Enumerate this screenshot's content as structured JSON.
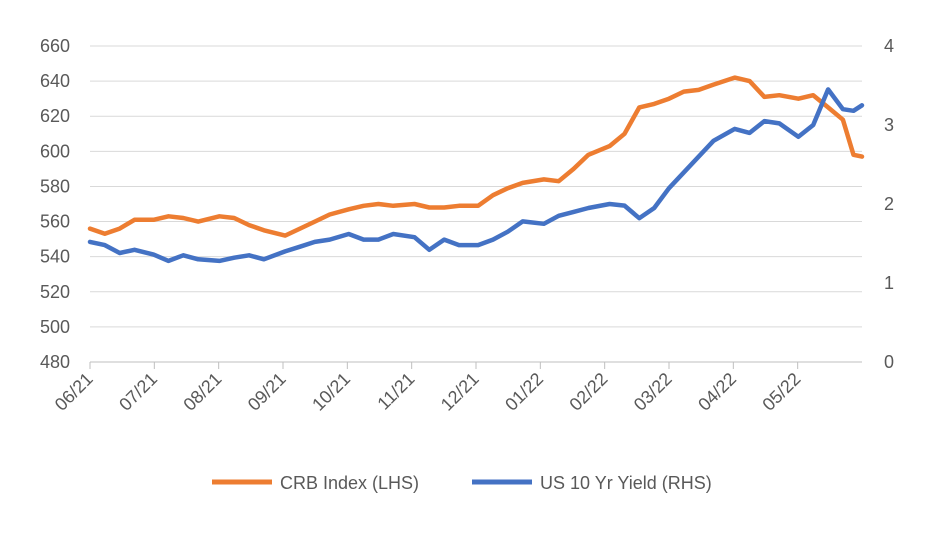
{
  "chart_data": {
    "type": "line",
    "title": "",
    "xlabel": "",
    "ylabel": "",
    "x_ticks": [
      "06/21",
      "07/21",
      "08/21",
      "09/21",
      "10/21",
      "11/21",
      "12/21",
      "01/22",
      "02/22",
      "03/22",
      "04/22",
      "05/22"
    ],
    "left_axis": {
      "ylim": [
        480,
        660
      ],
      "ticks": [
        "480",
        "500",
        "520",
        "540",
        "560",
        "580",
        "600",
        "620",
        "640",
        "660"
      ]
    },
    "right_axis": {
      "ylim": [
        0,
        4
      ],
      "ticks": [
        "0",
        "1",
        "2",
        "3",
        "4"
      ]
    },
    "grid": true,
    "legend_position": "bottom",
    "series": [
      {
        "name": "CRB Index (LHS)",
        "axis": "left",
        "color": "#ED7D31",
        "points": [
          [
            "2021-06-01",
            556
          ],
          [
            "2021-06-08",
            553
          ],
          [
            "2021-06-15",
            556
          ],
          [
            "2021-06-22",
            561
          ],
          [
            "2021-07-01",
            561
          ],
          [
            "2021-07-08",
            563
          ],
          [
            "2021-07-15",
            562
          ],
          [
            "2021-07-22",
            560
          ],
          [
            "2021-08-01",
            563
          ],
          [
            "2021-08-08",
            562
          ],
          [
            "2021-08-15",
            558
          ],
          [
            "2021-08-22",
            555
          ],
          [
            "2021-09-01",
            552
          ],
          [
            "2021-09-08",
            556
          ],
          [
            "2021-09-15",
            560
          ],
          [
            "2021-09-22",
            564
          ],
          [
            "2021-10-01",
            567
          ],
          [
            "2021-10-08",
            569
          ],
          [
            "2021-10-15",
            570
          ],
          [
            "2021-10-22",
            569
          ],
          [
            "2021-11-01",
            570
          ],
          [
            "2021-11-08",
            568
          ],
          [
            "2021-11-15",
            568
          ],
          [
            "2021-11-22",
            569
          ],
          [
            "2021-12-01",
            569
          ],
          [
            "2021-12-08",
            575
          ],
          [
            "2021-12-15",
            579
          ],
          [
            "2021-12-22",
            582
          ],
          [
            "2022-01-01",
            584
          ],
          [
            "2022-01-08",
            583
          ],
          [
            "2022-01-15",
            590
          ],
          [
            "2022-01-22",
            598
          ],
          [
            "2022-02-01",
            603
          ],
          [
            "2022-02-08",
            610
          ],
          [
            "2022-02-15",
            625
          ],
          [
            "2022-02-22",
            627
          ],
          [
            "2022-03-01",
            630
          ],
          [
            "2022-03-08",
            634
          ],
          [
            "2022-03-15",
            635
          ],
          [
            "2022-03-22",
            638
          ],
          [
            "2022-04-01",
            642
          ],
          [
            "2022-04-08",
            640
          ],
          [
            "2022-04-15",
            631
          ],
          [
            "2022-04-22",
            632
          ],
          [
            "2022-05-01",
            630
          ],
          [
            "2022-05-08",
            632
          ],
          [
            "2022-05-15",
            625
          ],
          [
            "2022-05-22",
            618
          ],
          [
            "2022-05-27",
            598
          ],
          [
            "2022-05-31",
            597
          ]
        ]
      },
      {
        "name": "US 10 Yr Yield (RHS)",
        "axis": "right",
        "color": "#4472C4",
        "points": [
          [
            "2021-06-01",
            1.52
          ],
          [
            "2021-06-08",
            1.48
          ],
          [
            "2021-06-15",
            1.38
          ],
          [
            "2021-06-22",
            1.42
          ],
          [
            "2021-07-01",
            1.36
          ],
          [
            "2021-07-08",
            1.28
          ],
          [
            "2021-07-15",
            1.35
          ],
          [
            "2021-07-22",
            1.3
          ],
          [
            "2021-08-01",
            1.28
          ],
          [
            "2021-08-08",
            1.32
          ],
          [
            "2021-08-15",
            1.35
          ],
          [
            "2021-08-22",
            1.3
          ],
          [
            "2021-09-01",
            1.4
          ],
          [
            "2021-09-08",
            1.46
          ],
          [
            "2021-09-15",
            1.52
          ],
          [
            "2021-09-22",
            1.55
          ],
          [
            "2021-10-01",
            1.62
          ],
          [
            "2021-10-08",
            1.55
          ],
          [
            "2021-10-15",
            1.55
          ],
          [
            "2021-10-22",
            1.62
          ],
          [
            "2021-11-01",
            1.58
          ],
          [
            "2021-11-08",
            1.42
          ],
          [
            "2021-11-15",
            1.55
          ],
          [
            "2021-11-22",
            1.48
          ],
          [
            "2021-12-01",
            1.48
          ],
          [
            "2021-12-08",
            1.55
          ],
          [
            "2021-12-15",
            1.65
          ],
          [
            "2021-12-22",
            1.78
          ],
          [
            "2022-01-01",
            1.75
          ],
          [
            "2022-01-08",
            1.85
          ],
          [
            "2022-01-15",
            1.9
          ],
          [
            "2022-01-22",
            1.95
          ],
          [
            "2022-02-01",
            2.0
          ],
          [
            "2022-02-08",
            1.98
          ],
          [
            "2022-02-15",
            1.82
          ],
          [
            "2022-02-22",
            1.95
          ],
          [
            "2022-03-01",
            2.2
          ],
          [
            "2022-03-08",
            2.4
          ],
          [
            "2022-03-15",
            2.6
          ],
          [
            "2022-03-22",
            2.8
          ],
          [
            "2022-04-01",
            2.95
          ],
          [
            "2022-04-08",
            2.9
          ],
          [
            "2022-04-15",
            3.05
          ],
          [
            "2022-04-22",
            3.02
          ],
          [
            "2022-05-01",
            2.85
          ],
          [
            "2022-05-08",
            3.0
          ],
          [
            "2022-05-15",
            3.45
          ],
          [
            "2022-05-22",
            3.2
          ],
          [
            "2022-05-27",
            3.18
          ],
          [
            "2022-05-31",
            3.25
          ]
        ]
      }
    ]
  }
}
